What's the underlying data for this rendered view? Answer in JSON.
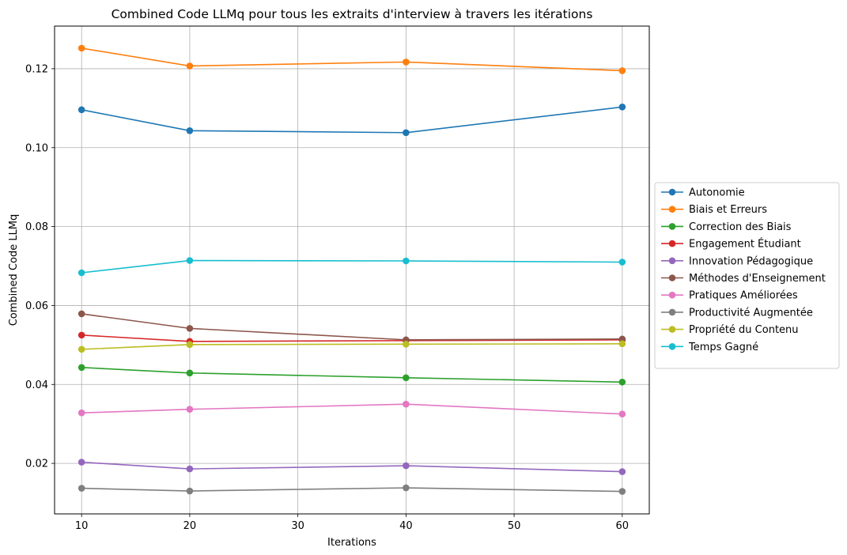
{
  "chart_data": {
    "type": "line",
    "title": "Combined Code LLMq pour tous les extraits d'interview à travers les itérations",
    "xlabel": "Iterations",
    "ylabel": "Combined Code LLMq",
    "x": [
      10,
      20,
      40,
      60
    ],
    "xlim": [
      7.5,
      62.5
    ],
    "ylim": [
      0.0072,
      0.1308
    ],
    "xticks": [
      10,
      20,
      30,
      40,
      50,
      60
    ],
    "yticks": [
      0.02,
      0.04,
      0.06,
      0.08,
      0.1,
      0.12
    ],
    "ytick_labels": [
      "0.02",
      "0.04",
      "0.06",
      "0.08",
      "0.10",
      "0.12"
    ],
    "grid": true,
    "legend_position": "center-right outside",
    "series": [
      {
        "name": "Autonomie",
        "color": "#1f77b4",
        "values": [
          0.1096,
          0.1043,
          0.1038,
          0.1103
        ]
      },
      {
        "name": "Biais et Erreurs",
        "color": "#ff7f0e",
        "values": [
          0.1252,
          0.1207,
          0.1217,
          0.1195
        ]
      },
      {
        "name": "Correction des Biais",
        "color": "#2ca02c",
        "values": [
          0.0443,
          0.0429,
          0.0417,
          0.0406
        ]
      },
      {
        "name": "Engagement Étudiant",
        "color": "#d62728",
        "values": [
          0.0525,
          0.0509,
          0.0511,
          0.0513
        ]
      },
      {
        "name": "Innovation Pédagogique",
        "color": "#9467bd",
        "values": [
          0.0203,
          0.0186,
          0.0194,
          0.0179
        ]
      },
      {
        "name": "Méthodes d'Enseignement",
        "color": "#8c564b",
        "values": [
          0.0579,
          0.0542,
          0.0513,
          0.0515
        ]
      },
      {
        "name": "Pratiques Améliorées",
        "color": "#e377c2",
        "values": [
          0.0328,
          0.0337,
          0.035,
          0.0325
        ]
      },
      {
        "name": "Productivité Augmentée",
        "color": "#7f7f7f",
        "values": [
          0.0137,
          0.013,
          0.0138,
          0.0129
        ]
      },
      {
        "name": "Propriété du Contenu",
        "color": "#bcbd22",
        "values": [
          0.0489,
          0.0501,
          0.0502,
          0.0503
        ]
      },
      {
        "name": "Temps Gagné",
        "color": "#17becf",
        "values": [
          0.0683,
          0.0714,
          0.0713,
          0.071
        ]
      }
    ]
  }
}
